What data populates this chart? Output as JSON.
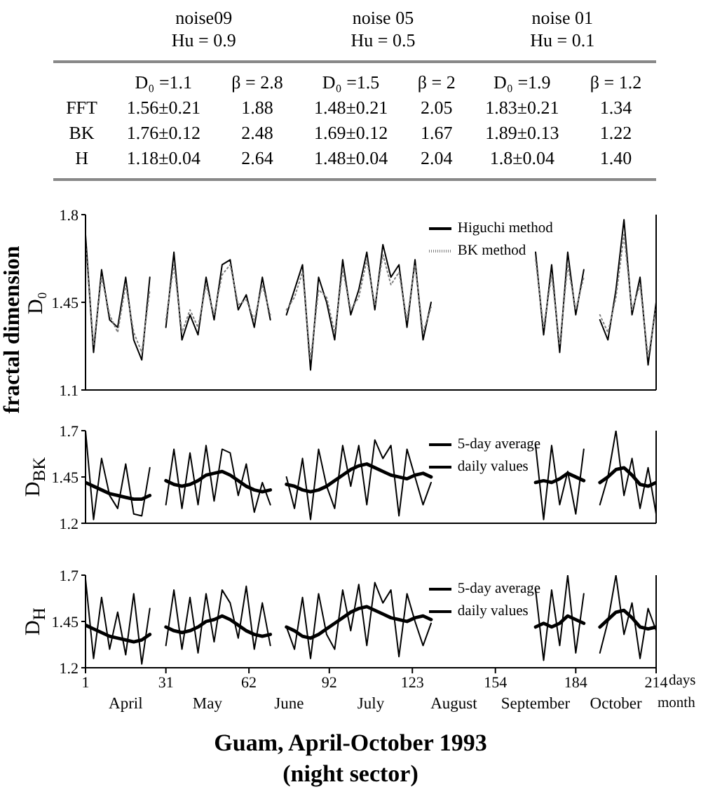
{
  "chart_data": [
    {
      "type": "other",
      "annotations": [
        "noise09",
        "Hu = 0.9",
        "noise 05",
        "Hu = 0.5",
        "noise 01",
        "Hu = 0.1"
      ],
      "categories": [
        "D₀ =1.1",
        "β = 2.8",
        "D₀ =1.5",
        "β = 2",
        "D₀ =1.9",
        "β = 1.2"
      ],
      "y_categories": [
        "FFT",
        "BK",
        "H"
      ],
      "cell_labels": [
        [
          "1.56±0.21",
          "1.88",
          "1.48±0.21",
          "2.05",
          "1.83±0.21",
          "1.34"
        ],
        [
          "1.76±0.12",
          "2.48",
          "1.69±0.12",
          "1.67",
          "1.89±0.13",
          "1.22"
        ],
        [
          "1.18±0.04",
          "2.64",
          "1.48±0.04",
          "2.04",
          "1.8±0.04",
          "1.40"
        ]
      ]
    },
    {
      "type": "line",
      "ylabel": "D₀",
      "annotations": [
        "fractal dimension"
      ],
      "xlim": [
        1,
        214
      ],
      "xticks": [
        1,
        31,
        62,
        92,
        123,
        154,
        184,
        214
      ],
      "ylim": [
        1.1,
        1.8
      ],
      "yticks": [
        1.1,
        1.45,
        1.8
      ],
      "tick_labels": "y",
      "legend": "top right",
      "x": [
        1,
        4,
        7,
        10,
        13,
        16,
        19,
        22,
        25,
        28,
        31,
        34,
        37,
        40,
        43,
        46,
        49,
        52,
        55,
        58,
        61,
        64,
        67,
        70,
        73,
        76,
        79,
        82,
        85,
        88,
        91,
        94,
        97,
        100,
        103,
        106,
        109,
        112,
        115,
        118,
        121,
        124,
        127,
        130,
        133,
        169,
        172,
        175,
        178,
        181,
        184,
        187,
        190,
        193,
        196,
        199,
        202,
        205,
        208,
        211,
        214
      ],
      "series": [
        {
          "name": "Higuchi method",
          "color": "#000000",
          "values": [
            1.72,
            1.25,
            1.58,
            1.38,
            1.35,
            1.55,
            1.3,
            1.22,
            1.55,
            null,
            1.35,
            1.65,
            1.3,
            1.4,
            1.32,
            1.55,
            1.38,
            1.6,
            1.62,
            1.42,
            1.48,
            1.35,
            1.55,
            1.38,
            null,
            1.4,
            1.5,
            1.6,
            1.18,
            1.55,
            1.45,
            1.3,
            1.62,
            1.4,
            1.5,
            1.65,
            1.42,
            1.68,
            1.55,
            1.6,
            1.35,
            1.62,
            1.3,
            1.45,
            null,
            1.65,
            1.32,
            1.6,
            1.25,
            1.65,
            1.4,
            1.58,
            null,
            1.38,
            1.3,
            1.5,
            1.78,
            1.4,
            1.55,
            1.2,
            1.45
          ]
        },
        {
          "name": "BK method",
          "color": "#808080",
          "line_style": "dotted",
          "values": [
            1.68,
            1.28,
            1.55,
            1.4,
            1.33,
            1.52,
            1.33,
            1.25,
            1.5,
            null,
            1.38,
            1.6,
            1.33,
            1.42,
            1.35,
            1.52,
            1.4,
            1.56,
            1.6,
            1.44,
            1.46,
            1.38,
            1.52,
            1.4,
            null,
            1.42,
            1.47,
            1.57,
            1.22,
            1.5,
            1.47,
            1.33,
            1.58,
            1.42,
            1.47,
            1.62,
            1.44,
            1.64,
            1.52,
            1.57,
            1.38,
            1.6,
            1.33,
            1.43,
            null,
            1.62,
            1.35,
            1.56,
            1.28,
            1.6,
            1.42,
            1.55,
            null,
            1.4,
            1.33,
            1.47,
            1.72,
            1.42,
            1.52,
            1.23,
            1.43
          ]
        }
      ]
    },
    {
      "type": "line",
      "ylabel": "D$_{BK}$",
      "xlim": [
        1,
        214
      ],
      "xticks": [
        1,
        31,
        62,
        92,
        123,
        154,
        184,
        214
      ],
      "ylim": [
        1.2,
        1.7
      ],
      "yticks": [
        1.2,
        1.45,
        1.7
      ],
      "tick_labels": "y",
      "legend": "top right",
      "x": [
        1,
        4,
        7,
        10,
        13,
        16,
        19,
        22,
        25,
        28,
        31,
        34,
        37,
        40,
        43,
        46,
        49,
        52,
        55,
        58,
        61,
        64,
        67,
        70,
        73,
        76,
        79,
        82,
        85,
        88,
        91,
        94,
        97,
        100,
        103,
        106,
        109,
        112,
        115,
        118,
        121,
        124,
        127,
        130,
        133,
        169,
        172,
        175,
        178,
        181,
        184,
        187,
        190,
        193,
        196,
        199,
        202,
        205,
        208,
        211,
        214
      ],
      "series": [
        {
          "name": "5-day average",
          "color": "#000000",
          "values": [
            1.42,
            1.4,
            1.38,
            1.36,
            1.35,
            1.34,
            1.33,
            1.33,
            1.35,
            null,
            1.43,
            1.41,
            1.4,
            1.41,
            1.43,
            1.46,
            1.47,
            1.48,
            1.46,
            1.43,
            1.4,
            1.38,
            1.37,
            1.38,
            null,
            1.41,
            1.4,
            1.38,
            1.37,
            1.38,
            1.4,
            1.43,
            1.46,
            1.49,
            1.51,
            1.52,
            1.5,
            1.48,
            1.46,
            1.45,
            1.44,
            1.46,
            1.47,
            1.45,
            null,
            1.42,
            1.43,
            1.42,
            1.44,
            1.47,
            1.45,
            1.43,
            null,
            1.42,
            1.45,
            1.49,
            1.5,
            1.46,
            1.41,
            1.4,
            1.42
          ]
        },
        {
          "name": "daily values",
          "color": "#000000",
          "values": [
            1.7,
            1.22,
            1.55,
            1.35,
            1.28,
            1.52,
            1.25,
            1.24,
            1.5,
            null,
            1.3,
            1.6,
            1.28,
            1.58,
            1.3,
            1.62,
            1.32,
            1.6,
            1.58,
            1.35,
            1.52,
            1.26,
            1.42,
            1.3,
            null,
            1.45,
            1.28,
            1.55,
            1.22,
            1.6,
            1.4,
            1.28,
            1.62,
            1.4,
            1.62,
            1.3,
            1.65,
            1.55,
            1.62,
            1.24,
            1.6,
            1.45,
            1.3,
            1.42,
            null,
            1.62,
            1.22,
            1.62,
            1.3,
            1.48,
            1.25,
            1.6,
            null,
            1.3,
            1.45,
            1.7,
            1.35,
            1.55,
            1.28,
            1.5,
            1.25
          ]
        }
      ]
    },
    {
      "type": "line",
      "ylabel": "D$_{H}$",
      "xlabel": "days",
      "title": "Guam, April-October 1993",
      "subtitle": "(night sector)",
      "annotations": [
        "April",
        "May",
        "June",
        "July",
        "August",
        "September",
        "October",
        "month"
      ],
      "xlim": [
        1,
        214
      ],
      "xticks": [
        1,
        31,
        62,
        92,
        123,
        154,
        184,
        214
      ],
      "ylim": [
        1.2,
        1.7
      ],
      "yticks": [
        1.2,
        1.45,
        1.7
      ],
      "legend": "top right",
      "x": [
        1,
        4,
        7,
        10,
        13,
        16,
        19,
        22,
        25,
        28,
        31,
        34,
        37,
        40,
        43,
        46,
        49,
        52,
        55,
        58,
        61,
        64,
        67,
        70,
        73,
        76,
        79,
        82,
        85,
        88,
        91,
        94,
        97,
        100,
        103,
        106,
        109,
        112,
        115,
        118,
        121,
        124,
        127,
        130,
        133,
        169,
        172,
        175,
        178,
        181,
        184,
        187,
        190,
        193,
        196,
        199,
        202,
        205,
        208,
        211,
        214
      ],
      "series": [
        {
          "name": "5-day average",
          "color": "#000000",
          "values": [
            1.43,
            1.41,
            1.39,
            1.37,
            1.36,
            1.35,
            1.34,
            1.35,
            1.38,
            null,
            1.42,
            1.4,
            1.39,
            1.4,
            1.42,
            1.45,
            1.46,
            1.48,
            1.46,
            1.43,
            1.4,
            1.38,
            1.37,
            1.38,
            null,
            1.42,
            1.4,
            1.37,
            1.36,
            1.38,
            1.41,
            1.44,
            1.47,
            1.5,
            1.52,
            1.53,
            1.51,
            1.49,
            1.47,
            1.46,
            1.45,
            1.47,
            1.48,
            1.46,
            null,
            1.42,
            1.44,
            1.42,
            1.44,
            1.48,
            1.46,
            1.44,
            null,
            1.42,
            1.46,
            1.5,
            1.51,
            1.47,
            1.42,
            1.41,
            1.42
          ]
        },
        {
          "name": "daily values",
          "color": "#000000",
          "values": [
            1.68,
            1.25,
            1.58,
            1.3,
            1.5,
            1.27,
            1.6,
            1.22,
            1.52,
            null,
            1.32,
            1.62,
            1.3,
            1.58,
            1.28,
            1.6,
            1.34,
            1.62,
            1.55,
            1.36,
            1.64,
            1.3,
            1.55,
            1.32,
            null,
            1.42,
            1.3,
            1.58,
            1.25,
            1.6,
            1.38,
            1.3,
            1.62,
            1.4,
            1.65,
            1.32,
            1.66,
            1.55,
            1.62,
            1.26,
            1.6,
            1.45,
            1.32,
            1.44,
            null,
            1.62,
            1.24,
            1.62,
            1.32,
            1.7,
            1.28,
            1.6,
            null,
            1.28,
            1.45,
            1.7,
            1.38,
            1.55,
            1.25,
            1.52,
            1.4
          ]
        }
      ]
    }
  ]
}
